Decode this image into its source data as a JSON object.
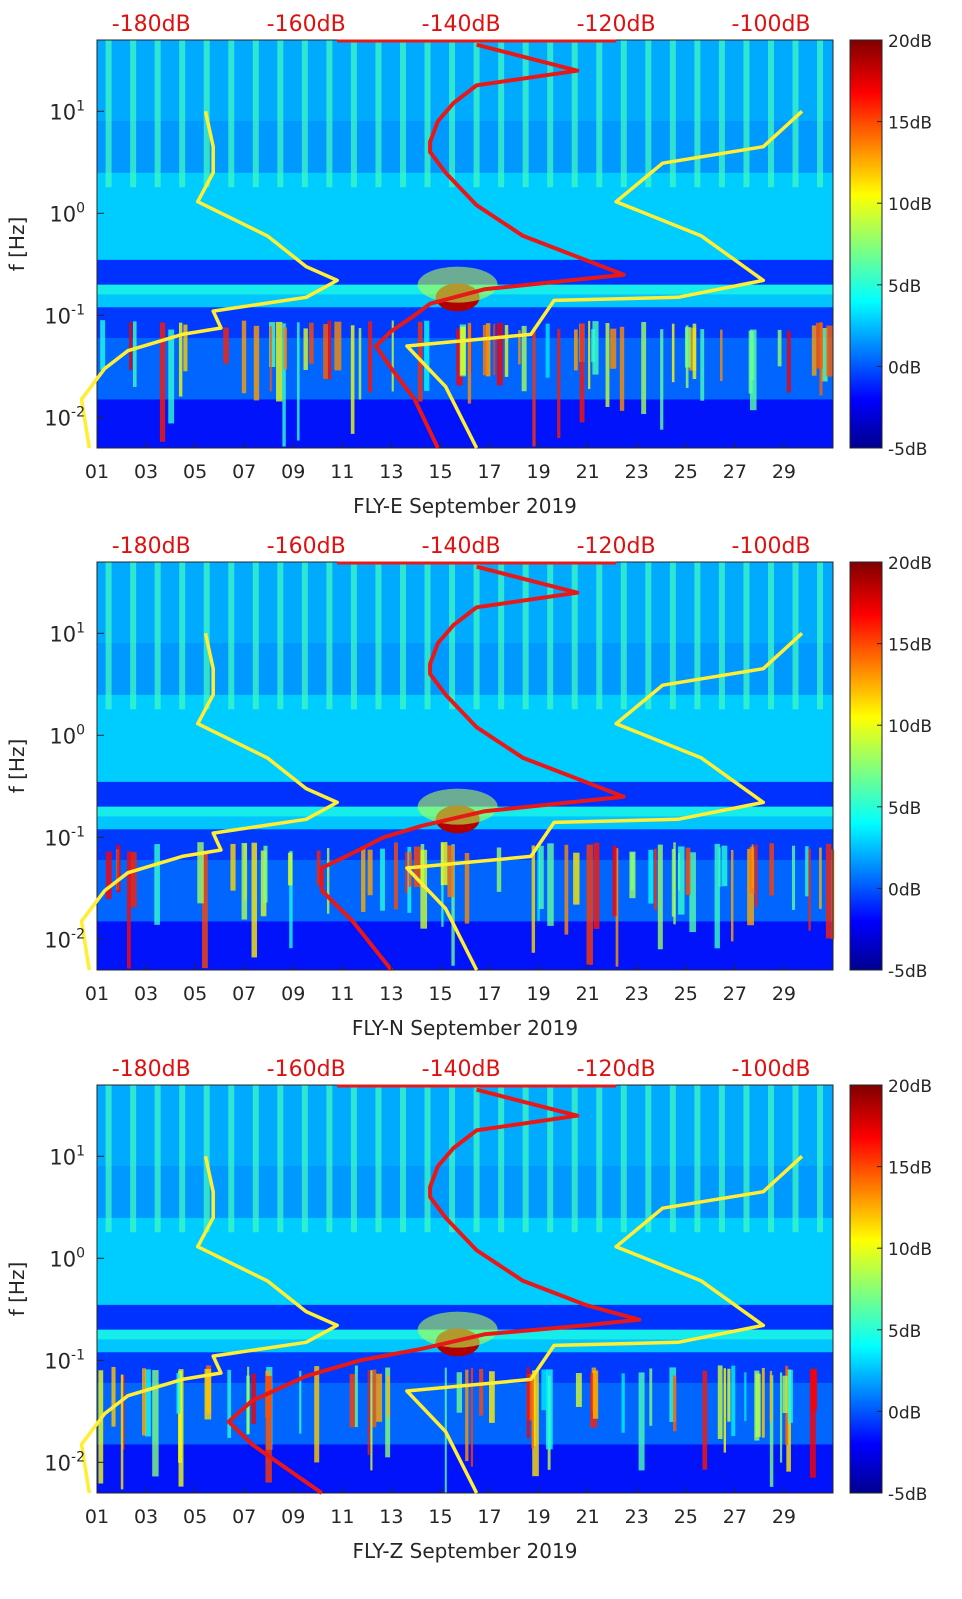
{
  "chart_data": [
    {
      "type": "heatmap",
      "panel": "east",
      "title": "",
      "xlabel": "FLY-E September 2019",
      "ylabel": "f [Hz]",
      "x_ticks": [
        "01",
        "03",
        "05",
        "07",
        "09",
        "11",
        "13",
        "15",
        "17",
        "19",
        "21",
        "23",
        "25",
        "27",
        "29"
      ],
      "y_ticks": [
        {
          "base": "10",
          "exp": "1",
          "value": 10
        },
        {
          "base": "10",
          "exp": "0",
          "value": 1
        },
        {
          "base": "10",
          "exp": "-1",
          "value": 0.1
        },
        {
          "base": "10",
          "exp": "-2",
          "value": 0.01
        }
      ],
      "ylim": [
        0.005,
        50
      ],
      "xlim": [
        1,
        31
      ],
      "top_axis_labels": [
        "-180dB",
        "-160dB",
        "-140dB",
        "-120dB",
        "-100dB"
      ],
      "top_axis_values": [
        -180,
        -160,
        -140,
        -120,
        -100
      ],
      "colorbar_labels": [
        "20dB",
        "15dB",
        "10dB",
        "5dB",
        "0dB",
        "-5dB"
      ],
      "colorbar_values": [
        20,
        15,
        10,
        5,
        0,
        -5
      ],
      "clim": [
        -5,
        20
      ],
      "yellow_curves": [
        {
          "name": "low-noise-model",
          "points": [
            [
              -173,
              10
            ],
            [
              -172,
              4.5
            ],
            [
              -172,
              2.5
            ],
            [
              -174,
              1.3
            ],
            [
              -165,
              0.6
            ],
            [
              -160,
              0.3
            ],
            [
              -156,
              0.22
            ],
            [
              -160,
              0.15
            ],
            [
              -172,
              0.11
            ],
            [
              -171,
              0.075
            ],
            [
              -176,
              0.065
            ],
            [
              -183,
              0.045
            ],
            [
              -186,
              0.03
            ],
            [
              -189,
              0.015
            ],
            [
              -188,
              0.005
            ]
          ]
        },
        {
          "name": "high-noise-model",
          "points": [
            [
              -96,
              10
            ],
            [
              -101,
              4.5
            ],
            [
              -114,
              3.1
            ],
            [
              -120,
              1.3
            ],
            [
              -109,
              0.6
            ],
            [
              -101,
              0.22
            ],
            [
              -112,
              0.15
            ],
            [
              -128,
              0.14
            ],
            [
              -131,
              0.065
            ],
            [
              -147,
              0.05
            ],
            [
              -142,
              0.02
            ],
            [
              -138,
              0.005
            ]
          ]
        }
      ],
      "red_curve": {
        "name": "median-psd",
        "points": [
          [
            -138,
            45
          ],
          [
            -125,
            25
          ],
          [
            -138,
            18
          ],
          [
            -141,
            12
          ],
          [
            -143,
            8
          ],
          [
            -144,
            5
          ],
          [
            -144,
            4
          ],
          [
            -142,
            2.5
          ],
          [
            -138,
            1.2
          ],
          [
            -132,
            0.6
          ],
          [
            -124,
            0.35
          ],
          [
            -119,
            0.25
          ],
          [
            -126,
            0.22
          ],
          [
            -137,
            0.18
          ],
          [
            -144,
            0.13
          ],
          [
            -146,
            0.1
          ],
          [
            -149,
            0.07
          ],
          [
            -151,
            0.05
          ],
          [
            -149,
            0.03
          ],
          [
            -146,
            0.015
          ],
          [
            -143,
            0.005
          ]
        ]
      }
    },
    {
      "type": "heatmap",
      "panel": "north",
      "title": "",
      "xlabel": "FLY-N September 2019",
      "ylabel": "f [Hz]",
      "x_ticks": [
        "01",
        "03",
        "05",
        "07",
        "09",
        "11",
        "13",
        "15",
        "17",
        "19",
        "21",
        "23",
        "25",
        "27",
        "29"
      ],
      "y_ticks": [
        {
          "base": "10",
          "exp": "1",
          "value": 10
        },
        {
          "base": "10",
          "exp": "0",
          "value": 1
        },
        {
          "base": "10",
          "exp": "-1",
          "value": 0.1
        },
        {
          "base": "10",
          "exp": "-2",
          "value": 0.01
        }
      ],
      "ylim": [
        0.005,
        50
      ],
      "xlim": [
        1,
        31
      ],
      "top_axis_labels": [
        "-180dB",
        "-160dB",
        "-140dB",
        "-120dB",
        "-100dB"
      ],
      "top_axis_values": [
        -180,
        -160,
        -140,
        -120,
        -100
      ],
      "colorbar_labels": [
        "20dB",
        "15dB",
        "10dB",
        "5dB",
        "0dB",
        "-5dB"
      ],
      "colorbar_values": [
        20,
        15,
        10,
        5,
        0,
        -5
      ],
      "clim": [
        -5,
        20
      ],
      "yellow_curves": [
        {
          "name": "low-noise-model",
          "points": [
            [
              -173,
              10
            ],
            [
              -172,
              4.5
            ],
            [
              -172,
              2.5
            ],
            [
              -174,
              1.3
            ],
            [
              -165,
              0.6
            ],
            [
              -160,
              0.3
            ],
            [
              -156,
              0.22
            ],
            [
              -160,
              0.15
            ],
            [
              -172,
              0.11
            ],
            [
              -171,
              0.075
            ],
            [
              -176,
              0.065
            ],
            [
              -183,
              0.045
            ],
            [
              -186,
              0.03
            ],
            [
              -189,
              0.015
            ],
            [
              -188,
              0.005
            ]
          ]
        },
        {
          "name": "high-noise-model",
          "points": [
            [
              -96,
              10
            ],
            [
              -101,
              4.5
            ],
            [
              -114,
              3.1
            ],
            [
              -120,
              1.3
            ],
            [
              -109,
              0.6
            ],
            [
              -101,
              0.22
            ],
            [
              -112,
              0.15
            ],
            [
              -128,
              0.14
            ],
            [
              -131,
              0.065
            ],
            [
              -147,
              0.05
            ],
            [
              -142,
              0.02
            ],
            [
              -138,
              0.005
            ]
          ]
        }
      ],
      "red_curve": {
        "name": "median-psd",
        "points": [
          [
            -138,
            45
          ],
          [
            -125,
            25
          ],
          [
            -138,
            18
          ],
          [
            -141,
            12
          ],
          [
            -143,
            8
          ],
          [
            -144,
            5
          ],
          [
            -144,
            4
          ],
          [
            -142,
            2.5
          ],
          [
            -138,
            1.2
          ],
          [
            -132,
            0.6
          ],
          [
            -124,
            0.35
          ],
          [
            -119,
            0.25
          ],
          [
            -126,
            0.22
          ],
          [
            -137,
            0.18
          ],
          [
            -145,
            0.13
          ],
          [
            -150,
            0.1
          ],
          [
            -154,
            0.07
          ],
          [
            -158,
            0.05
          ],
          [
            -158,
            0.03
          ],
          [
            -154,
            0.015
          ],
          [
            -149,
            0.005
          ]
        ]
      }
    },
    {
      "type": "heatmap",
      "panel": "vertical",
      "title": "",
      "xlabel": "FLY-Z September 2019",
      "ylabel": "f [Hz]",
      "x_ticks": [
        "01",
        "03",
        "05",
        "07",
        "09",
        "11",
        "13",
        "15",
        "17",
        "19",
        "21",
        "23",
        "25",
        "27",
        "29"
      ],
      "y_ticks": [
        {
          "base": "10",
          "exp": "1",
          "value": 10
        },
        {
          "base": "10",
          "exp": "0",
          "value": 1
        },
        {
          "base": "10",
          "exp": "-1",
          "value": 0.1
        },
        {
          "base": "10",
          "exp": "-2",
          "value": 0.01
        }
      ],
      "ylim": [
        0.005,
        50
      ],
      "xlim": [
        1,
        31
      ],
      "top_axis_labels": [
        "-180dB",
        "-160dB",
        "-140dB",
        "-120dB",
        "-100dB"
      ],
      "top_axis_values": [
        -180,
        -160,
        -140,
        -120,
        -100
      ],
      "colorbar_labels": [
        "20dB",
        "15dB",
        "10dB",
        "5dB",
        "0dB",
        "-5dB"
      ],
      "colorbar_values": [
        20,
        15,
        10,
        5,
        0,
        -5
      ],
      "clim": [
        -5,
        20
      ],
      "yellow_curves": [
        {
          "name": "low-noise-model",
          "points": [
            [
              -173,
              10
            ],
            [
              -172,
              4.5
            ],
            [
              -172,
              2.5
            ],
            [
              -174,
              1.3
            ],
            [
              -165,
              0.6
            ],
            [
              -160,
              0.3
            ],
            [
              -156,
              0.22
            ],
            [
              -160,
              0.15
            ],
            [
              -172,
              0.11
            ],
            [
              -171,
              0.075
            ],
            [
              -176,
              0.065
            ],
            [
              -183,
              0.045
            ],
            [
              -186,
              0.03
            ],
            [
              -189,
              0.015
            ],
            [
              -188,
              0.005
            ]
          ]
        },
        {
          "name": "high-noise-model",
          "points": [
            [
              -96,
              10
            ],
            [
              -101,
              4.5
            ],
            [
              -114,
              3.1
            ],
            [
              -120,
              1.3
            ],
            [
              -109,
              0.6
            ],
            [
              -101,
              0.22
            ],
            [
              -112,
              0.15
            ],
            [
              -128,
              0.14
            ],
            [
              -131,
              0.065
            ],
            [
              -147,
              0.05
            ],
            [
              -142,
              0.02
            ],
            [
              -138,
              0.005
            ]
          ]
        }
      ],
      "red_curve": {
        "name": "median-psd",
        "points": [
          [
            -138,
            45
          ],
          [
            -125,
            25
          ],
          [
            -138,
            18
          ],
          [
            -141,
            12
          ],
          [
            -143,
            8
          ],
          [
            -144,
            5
          ],
          [
            -144,
            4
          ],
          [
            -142,
            2.5
          ],
          [
            -138,
            1.2
          ],
          [
            -132,
            0.6
          ],
          [
            -124,
            0.35
          ],
          [
            -117,
            0.25
          ],
          [
            -124,
            0.22
          ],
          [
            -137,
            0.18
          ],
          [
            -145,
            0.13
          ],
          [
            -153,
            0.1
          ],
          [
            -160,
            0.07
          ],
          [
            -167,
            0.04
          ],
          [
            -170,
            0.025
          ],
          [
            -167,
            0.015
          ],
          [
            -158,
            0.005
          ]
        ]
      }
    }
  ]
}
